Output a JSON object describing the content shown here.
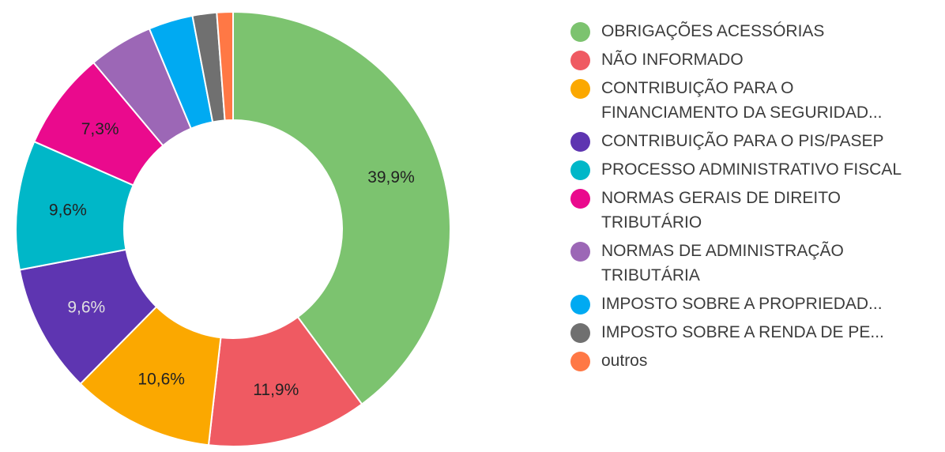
{
  "chart_data": {
    "type": "pie",
    "donut": true,
    "title": "",
    "legend_position": "right",
    "slices": [
      {
        "name": "OBRIGAÇÕES ACESSÓRIAS",
        "value": 39.9,
        "label": "39,9%",
        "color": "#7cc36f",
        "label_color": "#222222"
      },
      {
        "name": "NÃO INFORMADO",
        "value": 11.9,
        "label": "11,9%",
        "color": "#ef5a62",
        "label_color": "#222222"
      },
      {
        "name": "CONTRIBUIÇÃO PARA O FINANCIAMENTO DA SEGURIDAD...",
        "value": 10.6,
        "label": "10,6%",
        "color": "#fba800",
        "label_color": "#222222"
      },
      {
        "name": "CONTRIBUIÇÃO PARA O PIS/PASEP",
        "value": 9.6,
        "label": "9,6%",
        "color": "#5e35b1",
        "label_color": "#e0e0e0"
      },
      {
        "name": "PROCESSO ADMINISTRATIVO FISCAL",
        "value": 9.6,
        "label": "9,6%",
        "color": "#00b7c8",
        "label_color": "#222222"
      },
      {
        "name": "NORMAS GERAIS DE DIREITO TRIBUTÁRIO",
        "value": 7.3,
        "label": "7,3%",
        "color": "#ea0a8d",
        "label_color": "#222222"
      },
      {
        "name": "NORMAS DE ADMINISTRAÇÃO TRIBUTÁRIA",
        "value": 4.8,
        "label": "",
        "color": "#9c67b6",
        "label_color": "#222222"
      },
      {
        "name": "IMPOSTO SOBRE A PROPRIEDAD...",
        "value": 3.3,
        "label": "",
        "color": "#00aaf2",
        "label_color": "#222222"
      },
      {
        "name": "IMPOSTO SOBRE A RENDA DE PE...",
        "value": 1.8,
        "label": "",
        "color": "#707070",
        "label_color": "#222222"
      },
      {
        "name": "outros",
        "value": 1.2,
        "label": "",
        "color": "#ff7845",
        "label_color": "#222222"
      }
    ]
  }
}
